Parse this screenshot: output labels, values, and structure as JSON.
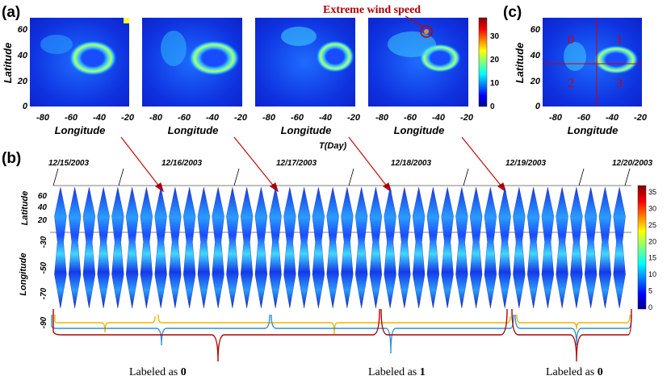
{
  "panels": {
    "a": "(a)",
    "b": "(b)",
    "c": "(c)"
  },
  "annotation": "Extreme wind speed",
  "axes": {
    "latitude": "Latitude",
    "longitude": "Longitude",
    "time": "T(Day)"
  },
  "panel_a": {
    "lat_ticks": [
      "0",
      "20",
      "40",
      "60"
    ],
    "lon_ticks": [
      "-80",
      "-60",
      "-40",
      "-20"
    ],
    "colorbar_ticks": [
      "0",
      "10",
      "20",
      "30"
    ]
  },
  "panel_c": {
    "lat_ticks": [
      "0",
      "20",
      "40",
      "60"
    ],
    "lon_ticks": [
      "-80",
      "-60",
      "-40",
      "-20"
    ],
    "quadrants": [
      "0",
      "1",
      "2",
      "3"
    ]
  },
  "panel_b": {
    "dates": [
      "12/15/2003",
      "12/16/2003",
      "12/17/2003",
      "12/18/2003",
      "12/19/2003",
      "12/20/2003"
    ],
    "lat_ticks": [
      "60",
      "40",
      "20"
    ],
    "lon_ticks": [
      "-30",
      "-50",
      "-70",
      "-90"
    ],
    "colorbar_ticks": [
      "0",
      "5",
      "10",
      "15",
      "20",
      "25",
      "30",
      "35"
    ]
  },
  "labels": [
    {
      "prefix": "Labeled as ",
      "value": "0"
    },
    {
      "prefix": "Labeled as ",
      "value": "1"
    },
    {
      "prefix": "Labeled as ",
      "value": "0"
    }
  ],
  "colors": {
    "jet_low": "#00008f",
    "jet_mid": "#00ffff",
    "jet_high": "#800000",
    "arrow": "#c00000",
    "brace_yellow": "#f0b400",
    "brace_blue": "#2f8fd6",
    "brace_red": "#b00000"
  }
}
